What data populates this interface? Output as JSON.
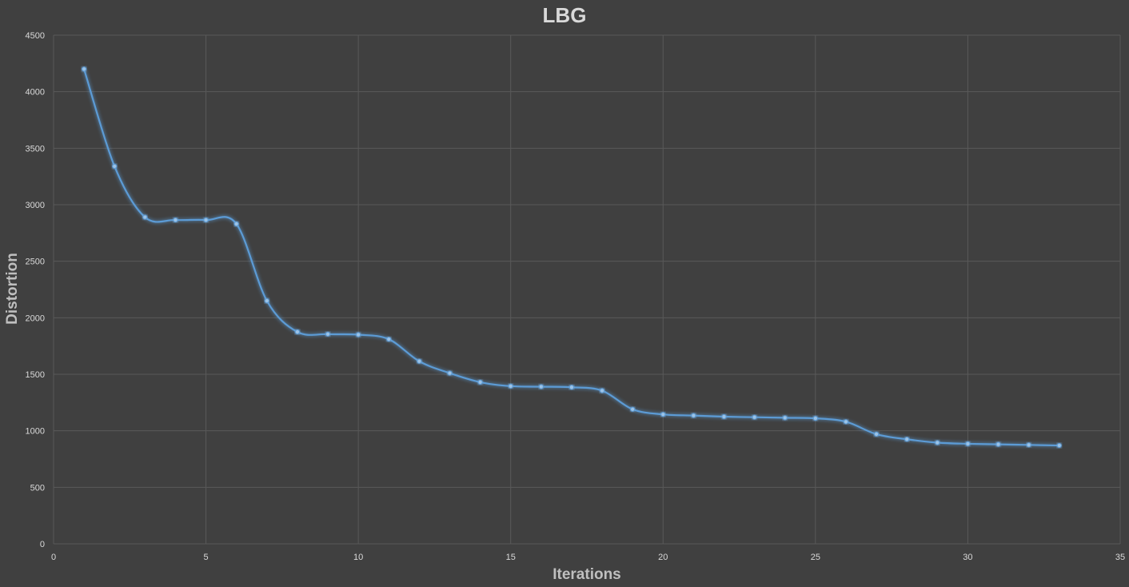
{
  "chart_data": {
    "type": "line",
    "title": "LBG",
    "xlabel": "Iterations",
    "ylabel": "Distortion",
    "xlim": [
      0,
      35
    ],
    "ylim": [
      0,
      4500
    ],
    "x_ticks": [
      0,
      5,
      10,
      15,
      20,
      25,
      30,
      35
    ],
    "y_ticks": [
      0,
      500,
      1000,
      1500,
      2000,
      2500,
      3000,
      3500,
      4000,
      4500
    ],
    "grid": true,
    "smooth": true,
    "markers": true,
    "series_color": "#5b9bd5",
    "series": [
      {
        "x": [
          1,
          2,
          3,
          4,
          5,
          6,
          7,
          8,
          9,
          10,
          11,
          12,
          13,
          14,
          15,
          16,
          17,
          18,
          19,
          20,
          21,
          22,
          23,
          24,
          25,
          26,
          27,
          28,
          29,
          30,
          31,
          32,
          33
        ],
        "values": [
          4200,
          3340,
          2890,
          2865,
          2865,
          2830,
          2150,
          1875,
          1855,
          1850,
          1810,
          1615,
          1510,
          1430,
          1395,
          1390,
          1385,
          1355,
          1190,
          1145,
          1135,
          1125,
          1120,
          1115,
          1110,
          1080,
          970,
          925,
          895,
          885,
          880,
          875,
          870
        ]
      }
    ]
  }
}
